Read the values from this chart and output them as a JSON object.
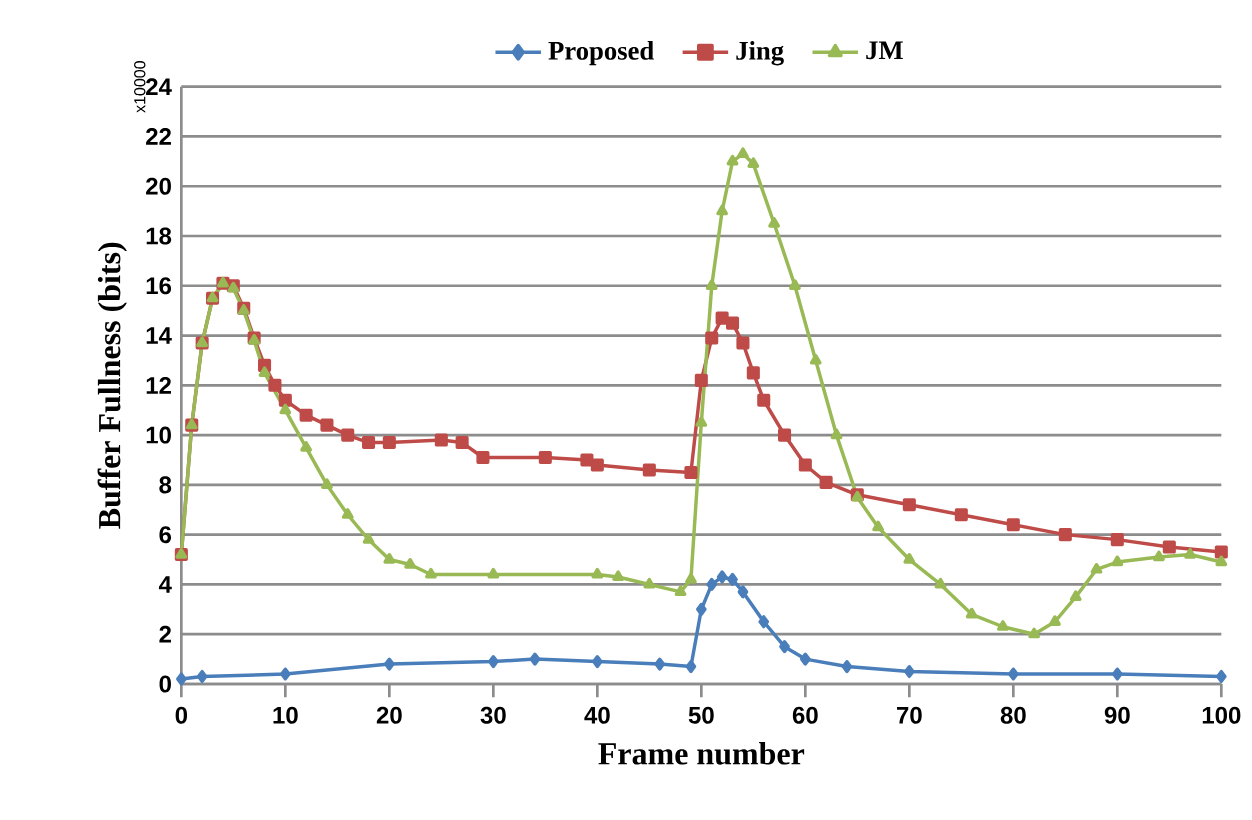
{
  "chart_data": {
    "type": "line",
    "xlabel": "Frame number",
    "ylabel": "Buffer Fullness (bits)",
    "annotations": [
      "x10000"
    ],
    "xlim": [
      0,
      100
    ],
    "ylim": [
      0,
      24
    ],
    "xticks": [
      0,
      10,
      20,
      30,
      40,
      50,
      60,
      70,
      80,
      90,
      100
    ],
    "yticks": [
      0,
      2,
      4,
      6,
      8,
      10,
      12,
      14,
      16,
      18,
      20,
      22,
      24
    ],
    "grid": "y",
    "legend": "top",
    "series": [
      {
        "name": "Proposed",
        "color": "#4a7ebb",
        "marker": "diamond",
        "x": [
          0,
          2,
          10,
          20,
          30,
          34,
          40,
          46,
          49,
          50,
          51,
          52,
          53,
          54,
          56,
          58,
          60,
          64,
          70,
          80,
          90,
          100
        ],
        "values": [
          0.2,
          0.3,
          0.4,
          0.8,
          0.9,
          1.0,
          0.9,
          0.8,
          0.7,
          3.0,
          4.0,
          4.3,
          4.2,
          3.7,
          2.5,
          1.5,
          1.0,
          0.7,
          0.5,
          0.4,
          0.4,
          0.3
        ]
      },
      {
        "name": "Jing",
        "color": "#be4b48",
        "marker": "square",
        "x": [
          0,
          1,
          2,
          3,
          4,
          5,
          6,
          7,
          8,
          9,
          10,
          12,
          14,
          16,
          18,
          20,
          25,
          27,
          29,
          35,
          39,
          40,
          45,
          49,
          50,
          51,
          52,
          53,
          54,
          55,
          56,
          58,
          60,
          62,
          65,
          70,
          75,
          80,
          85,
          90,
          95,
          100
        ],
        "values": [
          5.2,
          10.4,
          13.7,
          15.5,
          16.1,
          16.0,
          15.1,
          13.9,
          12.8,
          12.0,
          11.4,
          10.8,
          10.4,
          10.0,
          9.7,
          9.7,
          9.8,
          9.7,
          9.1,
          9.1,
          9.0,
          8.8,
          8.6,
          8.5,
          12.2,
          13.9,
          14.7,
          14.5,
          13.7,
          12.5,
          11.4,
          10.0,
          8.8,
          8.1,
          7.6,
          7.2,
          6.8,
          6.4,
          6.0,
          5.8,
          5.5,
          5.3
        ]
      },
      {
        "name": "JM",
        "color": "#98b954",
        "marker": "triangle",
        "x": [
          0,
          1,
          2,
          3,
          4,
          5,
          6,
          7,
          8,
          10,
          12,
          14,
          16,
          18,
          20,
          22,
          24,
          30,
          40,
          42,
          45,
          48,
          49,
          50,
          51,
          52,
          53,
          54,
          55,
          57,
          59,
          61,
          63,
          65,
          67,
          70,
          73,
          76,
          79,
          82,
          84,
          86,
          88,
          90,
          94,
          97,
          100
        ],
        "values": [
          5.2,
          10.4,
          13.7,
          15.5,
          16.1,
          15.9,
          15.0,
          13.8,
          12.5,
          11.0,
          9.5,
          8.0,
          6.8,
          5.8,
          5.0,
          4.8,
          4.4,
          4.4,
          4.4,
          4.3,
          4.0,
          3.7,
          4.2,
          10.5,
          16.0,
          19.0,
          21.0,
          21.3,
          20.9,
          18.5,
          16.0,
          13.0,
          10.0,
          7.5,
          6.3,
          5.0,
          4.0,
          2.8,
          2.3,
          2.0,
          2.5,
          3.5,
          4.6,
          4.9,
          5.1,
          5.2,
          4.9
        ]
      }
    ]
  }
}
